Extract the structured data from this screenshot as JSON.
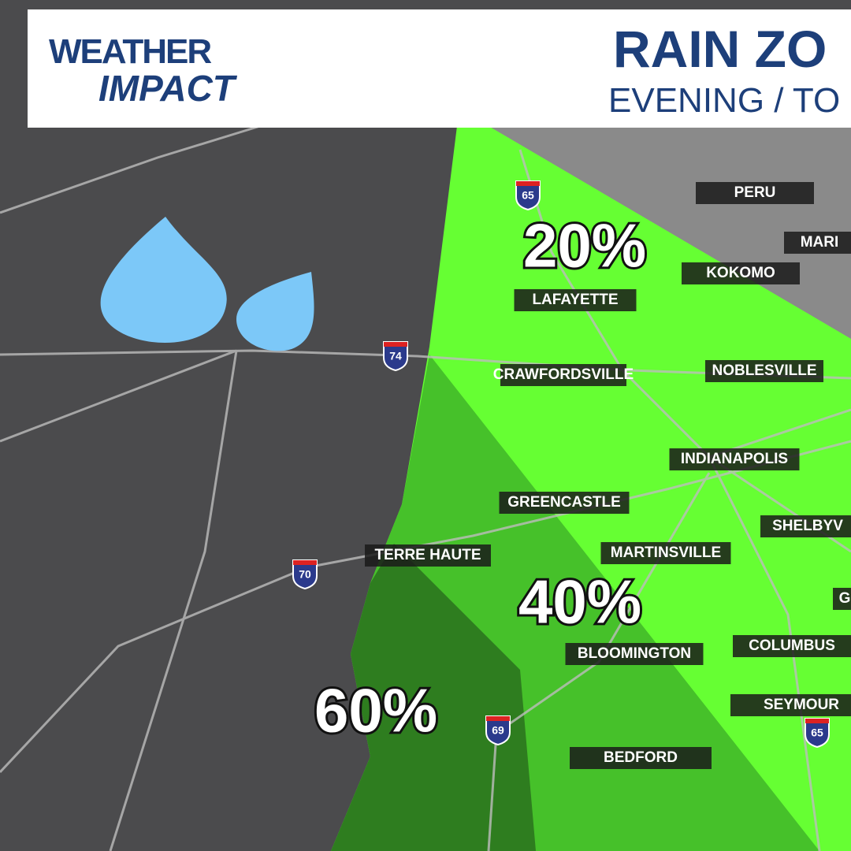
{
  "header": {
    "logo_top": "WEATHER",
    "logo_bottom": "IMPACT",
    "title": "RAIN ZO",
    "subtitle": "EVENING / TO"
  },
  "zones": [
    {
      "label": "20%"
    },
    {
      "label": "40%"
    },
    {
      "label": "60%"
    }
  ],
  "cities": [
    "PERU",
    "MARI",
    "KOKOMO",
    "LAFAYETTE",
    "CRAWFORDSVILLE",
    "NOBLESVILLE",
    "INDIANAPOLIS",
    "GREENCASTLE",
    "SHELBYV",
    "TERRE HAUTE",
    "MARTINSVILLE",
    "G",
    "COLUMBUS",
    "BLOOMINGTON",
    "SEYMOUR",
    "BEDFORD"
  ],
  "highways": [
    "65",
    "74",
    "70",
    "69",
    "65"
  ]
}
